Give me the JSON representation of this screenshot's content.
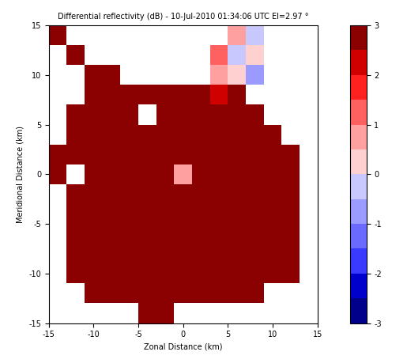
{
  "chart_data": {
    "type": "heatmap",
    "title": "Differential reflectivity (dB) - 10-Jul-2010 01:34:06 UTC El=2.97 °",
    "x_label": "Zonal Distance (km)",
    "y_label": "Meridional Distance (km)",
    "xlim": [
      -15,
      15
    ],
    "ylim": [
      -15,
      15
    ],
    "xticks": [
      -15,
      -10,
      -5,
      0,
      5,
      10,
      15
    ],
    "yticks": [
      -15,
      -10,
      -5,
      0,
      5,
      10,
      15
    ],
    "x_edges": [
      -15,
      -13,
      -11,
      -9,
      -7,
      -5,
      -3,
      -1,
      1,
      3,
      5,
      7,
      9,
      11,
      13,
      15
    ],
    "y_edges": [
      15,
      13,
      11,
      9,
      7,
      5,
      3,
      1,
      -1,
      -3,
      -5,
      -7,
      -9,
      -11,
      -13,
      -15
    ],
    "cells": [
      [
        2.8,
        null,
        null,
        null,
        null,
        null,
        null,
        null,
        null,
        null,
        0.5,
        -0.5,
        null,
        null,
        null
      ],
      [
        null,
        2.5,
        null,
        null,
        null,
        null,
        null,
        null,
        null,
        1.0,
        -0.5,
        0.3,
        null,
        null,
        null
      ],
      [
        null,
        null,
        2.7,
        2.5,
        null,
        null,
        null,
        null,
        null,
        0.8,
        0.0,
        -0.8,
        null,
        null,
        null
      ],
      [
        null,
        null,
        2.6,
        2.8,
        2.9,
        2.8,
        2.7,
        2.5,
        2.6,
        2.4,
        2.5,
        null,
        null,
        null,
        null
      ],
      [
        null,
        2.6,
        2.8,
        2.9,
        2.9,
        null,
        2.9,
        2.8,
        2.8,
        2.7,
        2.6,
        2.5,
        null,
        null,
        null
      ],
      [
        null,
        2.7,
        2.9,
        2.9,
        2.9,
        2.9,
        2.6,
        2.9,
        2.9,
        2.9,
        2.9,
        2.8,
        2.6,
        null,
        null
      ],
      [
        2.5,
        2.8,
        2.9,
        2.9,
        2.9,
        2.9,
        2.9,
        2.9,
        2.9,
        2.9,
        2.9,
        2.9,
        2.9,
        2.6,
        null
      ],
      [
        2.6,
        null,
        2.9,
        2.9,
        2.9,
        2.9,
        2.9,
        0.5,
        2.9,
        2.9,
        2.9,
        2.9,
        2.9,
        2.7,
        null
      ],
      [
        null,
        2.8,
        2.9,
        2.9,
        2.9,
        2.9,
        2.9,
        2.9,
        2.9,
        2.9,
        2.9,
        2.9,
        2.9,
        2.8,
        null
      ],
      [
        null,
        2.7,
        2.9,
        2.9,
        2.9,
        2.9,
        2.9,
        2.9,
        2.9,
        2.9,
        2.9,
        2.9,
        2.9,
        2.7,
        null
      ],
      [
        null,
        2.6,
        2.8,
        2.9,
        2.9,
        2.9,
        2.9,
        2.9,
        2.9,
        2.9,
        2.9,
        2.9,
        2.8,
        2.6,
        null
      ],
      [
        null,
        2.5,
        2.7,
        2.8,
        2.9,
        2.9,
        2.9,
        2.9,
        2.9,
        2.9,
        2.9,
        2.8,
        2.7,
        2.5,
        null
      ],
      [
        null,
        2.5,
        2.6,
        2.7,
        2.8,
        2.8,
        2.8,
        2.8,
        2.8,
        2.8,
        2.8,
        2.7,
        2.7,
        2.5,
        null
      ],
      [
        null,
        null,
        2.5,
        2.6,
        2.6,
        2.7,
        2.7,
        2.7,
        2.7,
        2.7,
        2.6,
        2.5,
        null,
        null,
        null
      ],
      [
        null,
        null,
        null,
        null,
        null,
        2.6,
        2.7,
        null,
        null,
        null,
        null,
        null,
        null,
        null,
        null
      ]
    ],
    "colorbar": {
      "range": [
        -3,
        3
      ],
      "ticks": [
        -3,
        -2,
        -1,
        0,
        1,
        2,
        3
      ],
      "colors": [
        "#00008b",
        "#0000cd",
        "#3a3aff",
        "#6a6aff",
        "#9a9aff",
        "#c8c8ff",
        "#ffd0d0",
        "#ffa0a0",
        "#ff6060",
        "#ff2020",
        "#d00000",
        "#8b0000"
      ]
    }
  }
}
